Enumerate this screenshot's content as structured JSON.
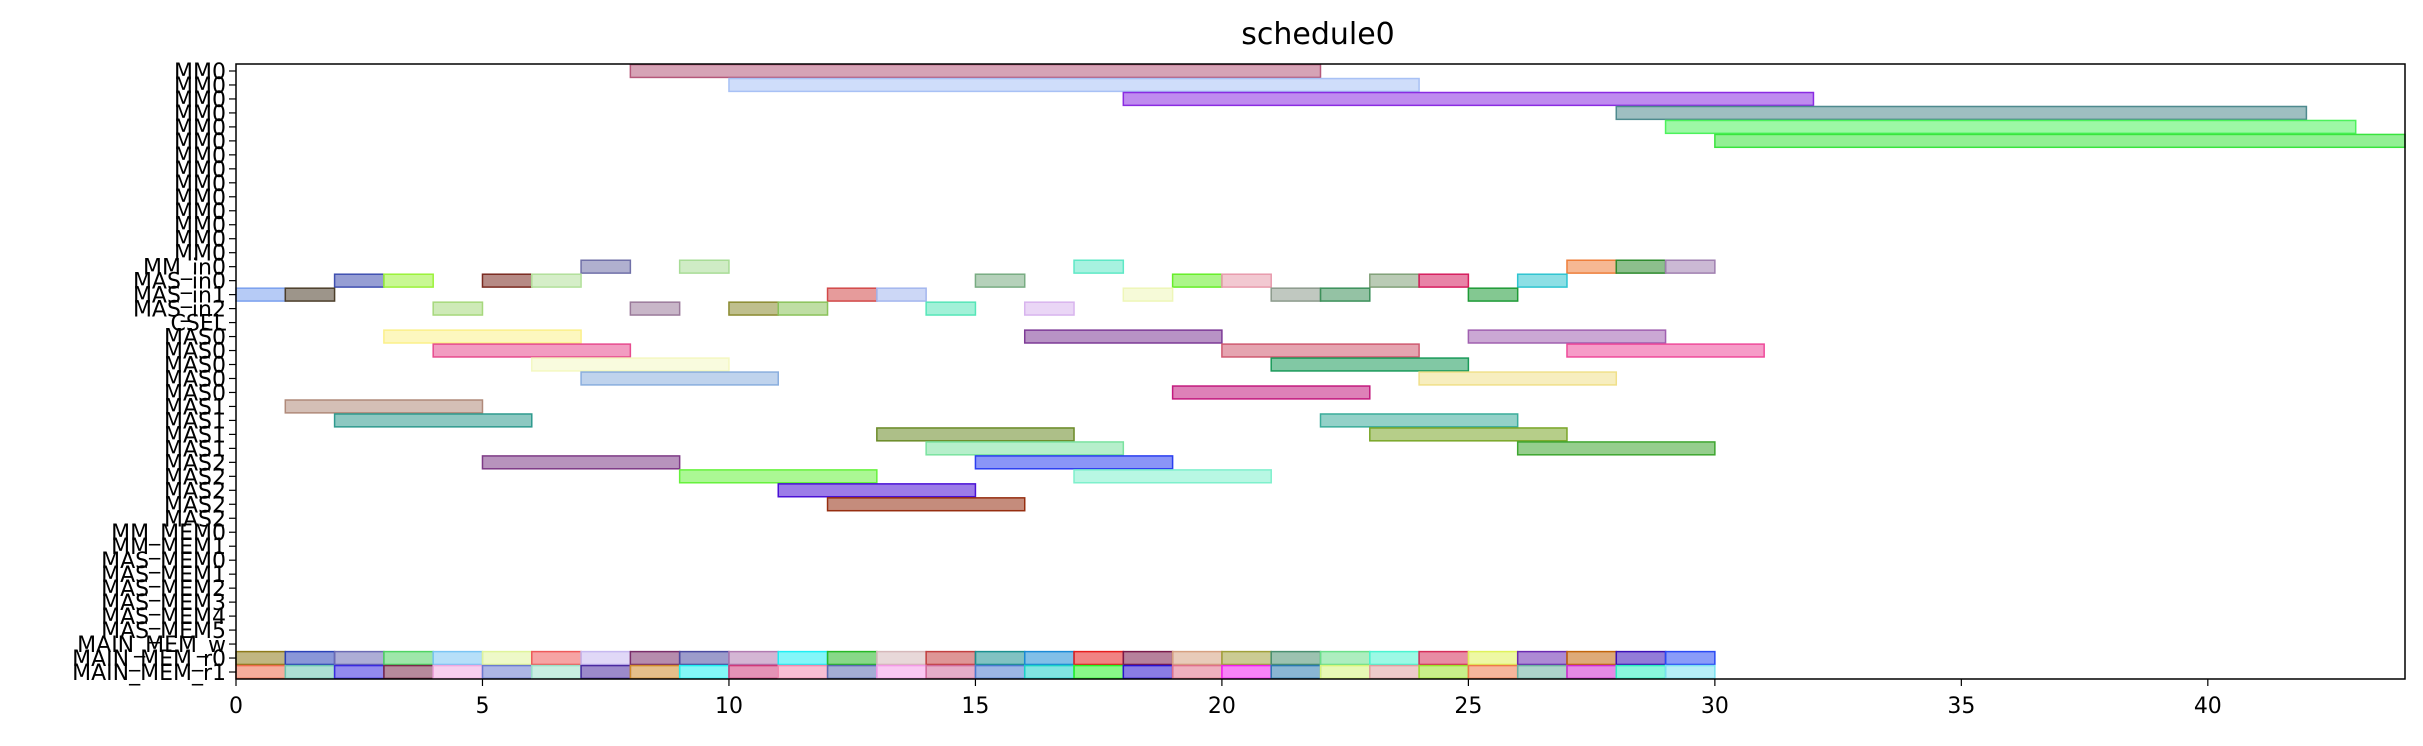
{
  "chart_data": {
    "type": "gantt",
    "title": "schedule0",
    "xlabel": "",
    "ylabel": "",
    "xlim": [
      0,
      44
    ],
    "x_ticks": [
      0,
      5,
      10,
      15,
      20,
      25,
      30,
      35,
      40
    ],
    "grid": false,
    "legend": "none",
    "rows": [
      "MM0",
      "MM0",
      "MM0",
      "MM0",
      "MM0",
      "MM0",
      "MM0",
      "MM0",
      "MM0",
      "MM0",
      "MM0",
      "MM0",
      "MM0",
      "MM0",
      "MM_in0",
      "MAS_in0",
      "MAS_in1",
      "MAS_in2",
      "CSEL",
      "MAS0",
      "MAS0",
      "MAS0",
      "MAS0",
      "MAS0",
      "MAS1",
      "MAS1",
      "MAS1",
      "MAS1",
      "MAS2",
      "MAS2",
      "MAS2",
      "MAS2",
      "MAS2",
      "MM_MEM0",
      "MM_MEM1",
      "MAS_MEM0",
      "MAS_MEM1",
      "MAS_MEM2",
      "MAS_MEM3",
      "MAS_MEM4",
      "MAS_MEM5",
      "MAIN_MEM_w",
      "MAIN_MEM_r0",
      "MAIN_MEM_r1"
    ],
    "tasks": [
      {
        "row": 0,
        "start": 8,
        "end": 22,
        "color": "#b5587a"
      },
      {
        "row": 1,
        "start": 10,
        "end": 24,
        "color": "#a8c1f5"
      },
      {
        "row": 2,
        "start": 18,
        "end": 32,
        "color": "#8a2be2"
      },
      {
        "row": 3,
        "start": 28,
        "end": 42,
        "color": "#4e8a8e"
      },
      {
        "row": 4,
        "start": 29,
        "end": 43,
        "color": "#4cf25c"
      },
      {
        "row": 5,
        "start": 30,
        "end": 44,
        "color": "#39e43d"
      },
      {
        "row": 14,
        "start": 7,
        "end": 8,
        "color": "#7070a8"
      },
      {
        "row": 14,
        "start": 9,
        "end": 10,
        "color": "#a8dc96"
      },
      {
        "row": 14,
        "start": 17,
        "end": 18,
        "color": "#5ee8c6"
      },
      {
        "row": 14,
        "start": 27,
        "end": 28,
        "color": "#ee7e3a"
      },
      {
        "row": 14,
        "start": 28,
        "end": 29,
        "color": "#2e8a2e"
      },
      {
        "row": 14,
        "start": 29,
        "end": 30,
        "color": "#a07fb0"
      },
      {
        "row": 15,
        "start": 2,
        "end": 3,
        "color": "#3f4fb0"
      },
      {
        "row": 15,
        "start": 3,
        "end": 4,
        "color": "#9bf23a"
      },
      {
        "row": 15,
        "start": 5,
        "end": 6,
        "color": "#7a2a20"
      },
      {
        "row": 15,
        "start": 6,
        "end": 7,
        "color": "#b2e09a"
      },
      {
        "row": 15,
        "start": 15,
        "end": 16,
        "color": "#78ac82"
      },
      {
        "row": 15,
        "start": 19,
        "end": 20,
        "color": "#66ee28"
      },
      {
        "row": 15,
        "start": 20,
        "end": 21,
        "color": "#e89aac"
      },
      {
        "row": 15,
        "start": 23,
        "end": 24,
        "color": "#81a078"
      },
      {
        "row": 15,
        "start": 24,
        "end": 25,
        "color": "#d61e5e"
      },
      {
        "row": 15,
        "start": 26,
        "end": 27,
        "color": "#2ec4d0"
      },
      {
        "row": 16,
        "start": 0,
        "end": 1,
        "color": "#7aa0ee"
      },
      {
        "row": 16,
        "start": 1,
        "end": 2,
        "color": "#4c3e2a"
      },
      {
        "row": 16,
        "start": 12,
        "end": 13,
        "color": "#d24848"
      },
      {
        "row": 16,
        "start": 13,
        "end": 14,
        "color": "#a3b6ee"
      },
      {
        "row": 16,
        "start": 18,
        "end": 19,
        "color": "#eef6b8"
      },
      {
        "row": 16,
        "start": 21,
        "end": 22,
        "color": "#8c9a8c"
      },
      {
        "row": 16,
        "start": 22,
        "end": 23,
        "color": "#3c905a"
      },
      {
        "row": 16,
        "start": 25,
        "end": 26,
        "color": "#1e9a36"
      },
      {
        "row": 17,
        "start": 4,
        "end": 5,
        "color": "#a6d87c"
      },
      {
        "row": 17,
        "start": 8,
        "end": 9,
        "color": "#9a7a9a"
      },
      {
        "row": 17,
        "start": 10,
        "end": 11,
        "color": "#8a8a30"
      },
      {
        "row": 17,
        "start": 11,
        "end": 12,
        "color": "#8ac25a"
      },
      {
        "row": 17,
        "start": 14,
        "end": 15,
        "color": "#56e6b8"
      },
      {
        "row": 17,
        "start": 16,
        "end": 17,
        "color": "#d8b4ee"
      },
      {
        "row": 19,
        "start": 3,
        "end": 7,
        "color": "#fbf08a"
      },
      {
        "row": 19,
        "start": 16,
        "end": 20,
        "color": "#7d3a96"
      },
      {
        "row": 19,
        "start": 25,
        "end": 29,
        "color": "#a060b0"
      },
      {
        "row": 20,
        "start": 4,
        "end": 8,
        "color": "#e74b8e"
      },
      {
        "row": 20,
        "start": 20,
        "end": 24,
        "color": "#cf5a70"
      },
      {
        "row": 20,
        "start": 27,
        "end": 31,
        "color": "#ee4a9a"
      },
      {
        "row": 21,
        "start": 6,
        "end": 10,
        "color": "#f4f8c2"
      },
      {
        "row": 21,
        "start": 21,
        "end": 25,
        "color": "#1a9a5a"
      },
      {
        "row": 22,
        "start": 7,
        "end": 11,
        "color": "#8aaede"
      },
      {
        "row": 22,
        "start": 24,
        "end": 28,
        "color": "#f0e08a"
      },
      {
        "row": 23,
        "start": 19,
        "end": 23,
        "color": "#c21a7e"
      },
      {
        "row": 24,
        "start": 1,
        "end": 5,
        "color": "#b08a7a"
      },
      {
        "row": 25,
        "start": 2,
        "end": 6,
        "color": "#2e9a8e"
      },
      {
        "row": 25,
        "start": 22,
        "end": 26,
        "color": "#3aac9a"
      },
      {
        "row": 26,
        "start": 13,
        "end": 17,
        "color": "#6a8a26"
      },
      {
        "row": 26,
        "start": 23,
        "end": 27,
        "color": "#7aa628"
      },
      {
        "row": 27,
        "start": 14,
        "end": 18,
        "color": "#7ae2a0"
      },
      {
        "row": 27,
        "start": 26,
        "end": 30,
        "color": "#3ea630"
      },
      {
        "row": 28,
        "start": 5,
        "end": 9,
        "color": "#7e3a86"
      },
      {
        "row": 28,
        "start": 15,
        "end": 19,
        "color": "#2a3ef0"
      },
      {
        "row": 29,
        "start": 9,
        "end": 13,
        "color": "#66f23c"
      },
      {
        "row": 29,
        "start": 17,
        "end": 21,
        "color": "#7ef0cc"
      },
      {
        "row": 30,
        "start": 11,
        "end": 15,
        "color": "#4a10d6"
      },
      {
        "row": 31,
        "start": 12,
        "end": 16,
        "color": "#962e10"
      },
      {
        "row": 42,
        "start": 0,
        "end": 1,
        "color": "#8e7a1a"
      },
      {
        "row": 42,
        "start": 1,
        "end": 2,
        "color": "#2a42b8"
      },
      {
        "row": 42,
        "start": 2,
        "end": 3,
        "color": "#6a6ab4"
      },
      {
        "row": 42,
        "start": 3,
        "end": 4,
        "color": "#4ed462"
      },
      {
        "row": 42,
        "start": 4,
        "end": 5,
        "color": "#7ac4f4"
      },
      {
        "row": 42,
        "start": 5,
        "end": 6,
        "color": "#e0f49a"
      },
      {
        "row": 42,
        "start": 6,
        "end": 7,
        "color": "#ee5a5a"
      },
      {
        "row": 42,
        "start": 7,
        "end": 8,
        "color": "#c6b8f0"
      },
      {
        "row": 42,
        "start": 8,
        "end": 9,
        "color": "#7a2e6a"
      },
      {
        "row": 42,
        "start": 9,
        "end": 10,
        "color": "#4a4aa0"
      },
      {
        "row": 42,
        "start": 10,
        "end": 11,
        "color": "#b07ab0"
      },
      {
        "row": 42,
        "start": 11,
        "end": 12,
        "color": "#1eeef4"
      },
      {
        "row": 42,
        "start": 12,
        "end": 13,
        "color": "#26b826"
      },
      {
        "row": 42,
        "start": 13,
        "end": 14,
        "color": "#d6b8ba"
      },
      {
        "row": 42,
        "start": 14,
        "end": 15,
        "color": "#c24040"
      },
      {
        "row": 42,
        "start": 15,
        "end": 16,
        "color": "#1a9090"
      },
      {
        "row": 42,
        "start": 16,
        "end": 17,
        "color": "#1a8ad6"
      },
      {
        "row": 42,
        "start": 17,
        "end": 18,
        "color": "#e61e1e"
      },
      {
        "row": 42,
        "start": 18,
        "end": 19,
        "color": "#7a1a4a"
      },
      {
        "row": 42,
        "start": 19,
        "end": 20,
        "color": "#d6a080"
      },
      {
        "row": 42,
        "start": 20,
        "end": 21,
        "color": "#a0a03a"
      },
      {
        "row": 42,
        "start": 21,
        "end": 22,
        "color": "#4a9070"
      },
      {
        "row": 42,
        "start": 22,
        "end": 23,
        "color": "#6ae08a"
      },
      {
        "row": 42,
        "start": 23,
        "end": 24,
        "color": "#4af4d0"
      },
      {
        "row": 42,
        "start": 24,
        "end": 25,
        "color": "#d62e5a"
      },
      {
        "row": 42,
        "start": 25,
        "end": 26,
        "color": "#e0f25a"
      },
      {
        "row": 42,
        "start": 26,
        "end": 27,
        "color": "#6a2ab0"
      },
      {
        "row": 42,
        "start": 27,
        "end": 28,
        "color": "#c2640a"
      },
      {
        "row": 42,
        "start": 28,
        "end": 29,
        "color": "#3a10b8"
      },
      {
        "row": 42,
        "start": 29,
        "end": 30,
        "color": "#2a4af4"
      },
      {
        "row": 43,
        "start": 0,
        "end": 1,
        "color": "#ee6a4a"
      },
      {
        "row": 43,
        "start": 1,
        "end": 2,
        "color": "#6ac4b0"
      },
      {
        "row": 43,
        "start": 2,
        "end": 3,
        "color": "#3a2ae0"
      },
      {
        "row": 43,
        "start": 3,
        "end": 4,
        "color": "#7a2a4a"
      },
      {
        "row": 43,
        "start": 4,
        "end": 5,
        "color": "#f0a8e0"
      },
      {
        "row": 43,
        "start": 5,
        "end": 6,
        "color": "#6a7ad0"
      },
      {
        "row": 43,
        "start": 6,
        "end": 7,
        "color": "#9ae0c8"
      },
      {
        "row": 43,
        "start": 7,
        "end": 8,
        "color": "#4a2aa0"
      },
      {
        "row": 43,
        "start": 8,
        "end": 9,
        "color": "#d08a2a"
      },
      {
        "row": 43,
        "start": 9,
        "end": 10,
        "color": "#1ef0f0"
      },
      {
        "row": 43,
        "start": 10,
        "end": 11,
        "color": "#d03a7a"
      },
      {
        "row": 43,
        "start": 11,
        "end": 12,
        "color": "#f08ab0"
      },
      {
        "row": 43,
        "start": 12,
        "end": 13,
        "color": "#5a6ab0"
      },
      {
        "row": 43,
        "start": 13,
        "end": 14,
        "color": "#f49ae8"
      },
      {
        "row": 43,
        "start": 14,
        "end": 15,
        "color": "#d06a9a"
      },
      {
        "row": 43,
        "start": 15,
        "end": 16,
        "color": "#4a7ad0"
      },
      {
        "row": 43,
        "start": 16,
        "end": 17,
        "color": "#1ad0c8"
      },
      {
        "row": 43,
        "start": 17,
        "end": 18,
        "color": "#26f226"
      },
      {
        "row": 43,
        "start": 18,
        "end": 19,
        "color": "#2a10d0"
      },
      {
        "row": 43,
        "start": 19,
        "end": 20,
        "color": "#e0708a"
      },
      {
        "row": 43,
        "start": 20,
        "end": 21,
        "color": "#f01ef0"
      },
      {
        "row": 43,
        "start": 21,
        "end": 22,
        "color": "#2a7ab0"
      },
      {
        "row": 43,
        "start": 22,
        "end": 23,
        "color": "#d6f47a"
      },
      {
        "row": 43,
        "start": 23,
        "end": 24,
        "color": "#e0a0a0"
      },
      {
        "row": 43,
        "start": 24,
        "end": 25,
        "color": "#9ae22a"
      },
      {
        "row": 43,
        "start": 25,
        "end": 26,
        "color": "#ee7a4a"
      },
      {
        "row": 43,
        "start": 26,
        "end": 27,
        "color": "#6ab0a0"
      },
      {
        "row": 43,
        "start": 27,
        "end": 28,
        "color": "#d02ad0"
      },
      {
        "row": 43,
        "start": 28,
        "end": 29,
        "color": "#2af0c0"
      },
      {
        "row": 43,
        "start": 29,
        "end": 30,
        "color": "#7ae0f0"
      }
    ]
  }
}
